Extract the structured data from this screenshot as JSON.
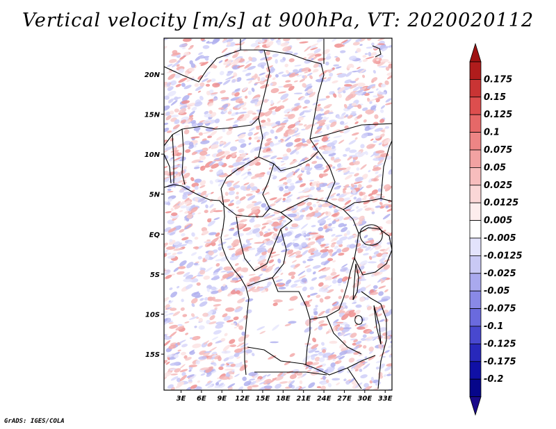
{
  "title": "Vertical velocity [m/s] at 900hPa, VT: 2020020112",
  "credit": "GrADS: IGES/COLA",
  "map": {
    "lat_labels": [
      "20N",
      "15N",
      "10N",
      "5N",
      "EQ",
      "5S",
      "10S",
      "15S"
    ],
    "lat_values": [
      20,
      15,
      10,
      5,
      0,
      -5,
      -10,
      -15
    ],
    "lon_labels": [
      "3E",
      "6E",
      "9E",
      "12E",
      "15E",
      "18E",
      "21E",
      "24E",
      "27E",
      "30E",
      "33E"
    ],
    "lon_values": [
      3,
      6,
      9,
      12,
      15,
      18,
      21,
      24,
      27,
      30,
      33
    ],
    "lon_range": [
      0.5,
      34
    ],
    "lat_range": [
      -19.5,
      24.5
    ]
  },
  "colorbar": {
    "labels": [
      "0.175",
      "0.15",
      "0.125",
      "0.1",
      "0.075",
      "0.05",
      "0.025",
      "0.0125",
      "0.005",
      "-0.005",
      "-0.0125",
      "-0.025",
      "-0.05",
      "-0.075",
      "-0.1",
      "-0.125",
      "-0.175",
      "-0.2"
    ],
    "colors": [
      "#b01c1c",
      "#c93434",
      "#dd4e4e",
      "#e66868",
      "#ed8585",
      "#f2a2a2",
      "#f7bdbd",
      "#fad7d7",
      "#fdeded",
      "#ffffff",
      "#e3e3fc",
      "#c9c9f5",
      "#a9a9ee",
      "#8989e6",
      "#6a6ade",
      "#4848cf",
      "#2828bb",
      "#1010a5",
      "#06068a"
    ],
    "top_arrow_color": "#9e1212",
    "bottom_arrow_color": "#1a0a8a"
  }
}
